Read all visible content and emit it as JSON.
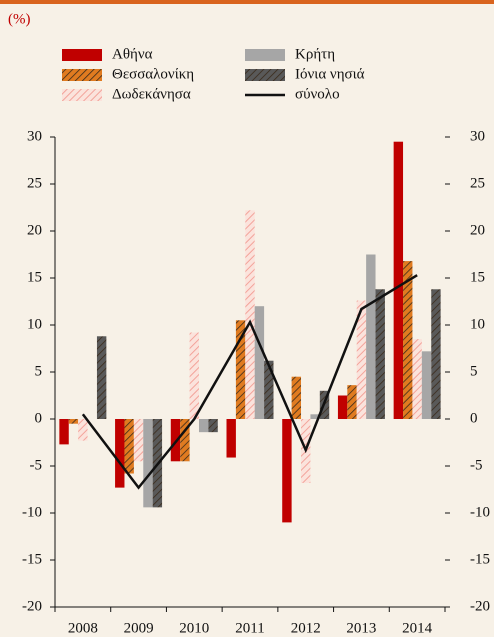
{
  "chart_data": {
    "type": "bar",
    "unit_label": "(%)",
    "categories": [
      "2008",
      "2009",
      "2010",
      "2011",
      "2012",
      "2013",
      "2014"
    ],
    "series": [
      {
        "name": "Αθήνα",
        "color": "#c00000",
        "pattern": "solid",
        "values": [
          -2.7,
          -7.3,
          -4.5,
          -4.1,
          -11,
          2.5,
          29.5
        ]
      },
      {
        "name": "Θεσσαλονίκη",
        "color": "#e07b20",
        "pattern": "hatch",
        "values": [
          -0.5,
          -5.8,
          -4.5,
          10.5,
          4.5,
          3.6,
          16.8
        ]
      },
      {
        "name": "Δωδεκάνησα",
        "color": "#f3a39a",
        "pattern": "hatch",
        "values": [
          -2.3,
          -4.5,
          9.2,
          22.2,
          -6.8,
          12.6,
          8.5
        ]
      },
      {
        "name": "Κρήτη",
        "color": "#a6a6a6",
        "pattern": "solid",
        "values": [
          0,
          -9.4,
          -1.4,
          12,
          0.5,
          17.5,
          7.2
        ]
      },
      {
        "name": "Ιόνια νησιά",
        "color": "#595959",
        "pattern": "hatch",
        "values": [
          8.8,
          -9.4,
          -1.4,
          6.2,
          3,
          13.8,
          13.8
        ]
      },
      {
        "name": "σύνολο",
        "color": "#111111",
        "type": "line",
        "values": [
          0.5,
          -7.3,
          0,
          10.3,
          -3.3,
          11.7,
          15.3
        ]
      }
    ],
    "ylim": [
      -20,
      30
    ],
    "yticks": [
      -20,
      -15,
      -10,
      -5,
      0,
      5,
      10,
      15,
      20,
      25,
      30
    ],
    "y2lim": [
      -20,
      30
    ],
    "y2ticks": [
      -20,
      -15,
      -10,
      -5,
      0,
      5,
      10,
      15,
      20,
      25,
      30
    ]
  }
}
